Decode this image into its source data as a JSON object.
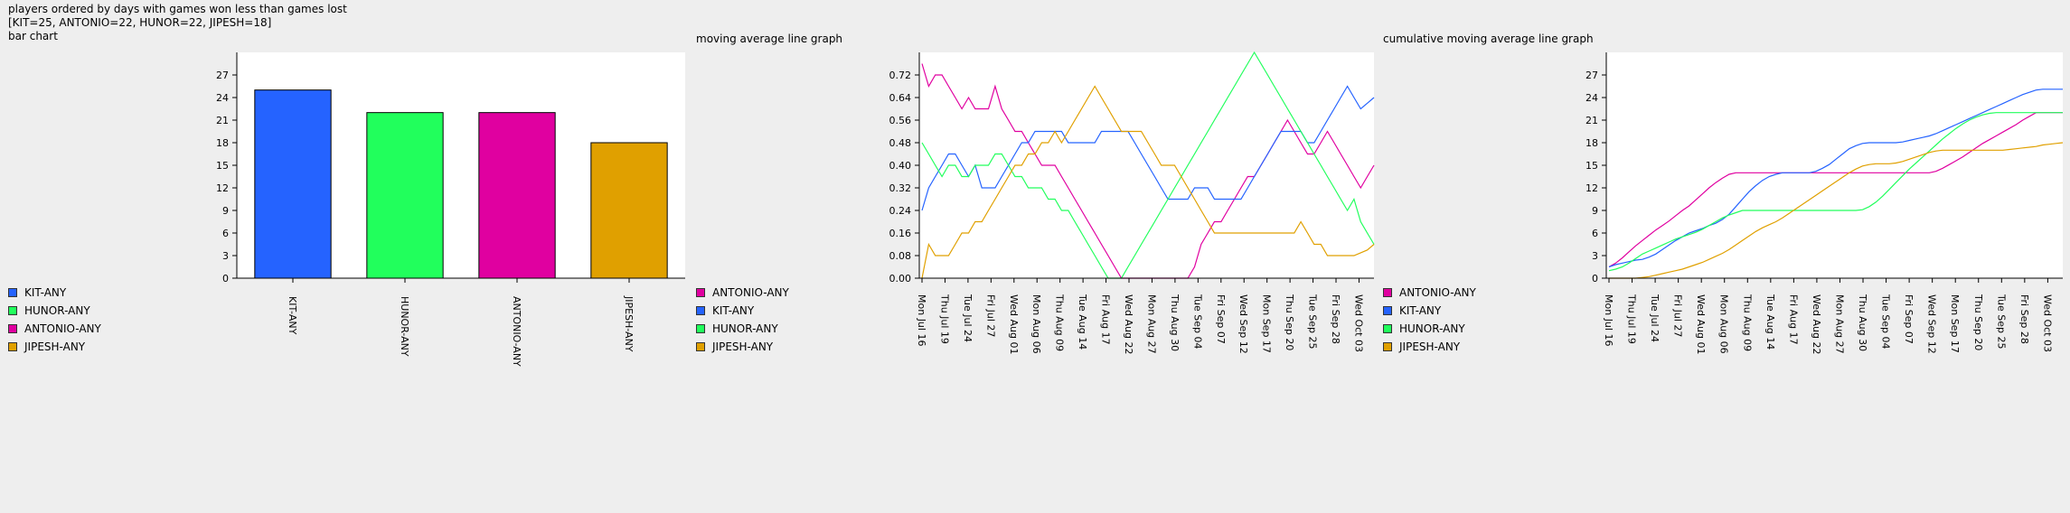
{
  "header": {
    "line1": "players ordered by days with games won less than games lost",
    "line2": "[KIT=25, ANTONIO=22, HUNOR=22, JIPESH=18]",
    "line3": "bar chart"
  },
  "colors": {
    "KIT-ANY": "#2563ff",
    "HUNOR-ANY": "#21ff5c",
    "ANTONIO-ANY": "#e000a0",
    "JIPESH-ANY": "#e0a000",
    "plot_bg": "#ffffff",
    "page_bg": "#eeeeee"
  },
  "chart_data": [
    {
      "type": "bar",
      "title": "",
      "categories": [
        "KIT-ANY",
        "HUNOR-ANY",
        "ANTONIO-ANY",
        "JIPESH-ANY"
      ],
      "values": [
        25,
        22,
        22,
        18
      ],
      "ylim": [
        0,
        30
      ],
      "yticks": [
        0,
        3,
        6,
        9,
        12,
        15,
        18,
        21,
        24,
        27
      ],
      "legend": [
        "KIT-ANY",
        "HUNOR-ANY",
        "ANTONIO-ANY",
        "JIPESH-ANY"
      ],
      "legend_position": "bottom-left",
      "grid": false
    },
    {
      "type": "line",
      "title": "moving average line graph",
      "ylim": [
        0,
        0.8
      ],
      "yticks": [
        "0.00",
        "0.08",
        "0.16",
        "0.24",
        "0.32",
        "0.40",
        "0.48",
        "0.56",
        "0.64",
        "0.72"
      ],
      "xticks": [
        "Mon Jul 16",
        "Thu Jul 19",
        "Tue Jul 24",
        "Fri Jul 27",
        "Wed Aug 01",
        "Mon Aug 06",
        "Thu Aug 09",
        "Tue Aug 14",
        "Fri Aug 17",
        "Wed Aug 22",
        "Mon Aug 27",
        "Thu Aug 30",
        "Tue Sep 04",
        "Fri Sep 07",
        "Wed Sep 12",
        "Mon Sep 17",
        "Thu Sep 20",
        "Tue Sep 25",
        "Fri Sep 28",
        "Wed Oct 03"
      ],
      "legend": [
        "ANTONIO-ANY",
        "KIT-ANY",
        "HUNOR-ANY",
        "JIPESH-ANY"
      ],
      "legend_position": "bottom-left",
      "grid": false,
      "series": [
        {
          "name": "ANTONIO-ANY",
          "values": [
            0.76,
            0.68,
            0.72,
            0.72,
            0.68,
            0.64,
            0.6,
            0.64,
            0.6,
            0.6,
            0.6,
            0.68,
            0.6,
            0.56,
            0.52,
            0.52,
            0.48,
            0.44,
            0.4,
            0.4,
            0.4,
            0.36,
            0.32,
            0.28,
            0.24,
            0.2,
            0.16,
            0.12,
            0.08,
            0.04,
            0.0,
            0.0,
            0.0,
            0.0,
            0.0,
            0.0,
            0.0,
            0.0,
            0.0,
            0.0,
            0.0,
            0.04,
            0.12,
            0.16,
            0.2,
            0.2,
            0.24,
            0.28,
            0.32,
            0.36,
            0.36,
            0.4,
            0.44,
            0.48,
            0.52,
            0.56,
            0.52,
            0.48,
            0.44,
            0.44,
            0.48,
            0.52,
            0.48,
            0.44,
            0.4,
            0.36,
            0.32,
            0.36,
            0.4
          ]
        },
        {
          "name": "KIT-ANY",
          "values": [
            0.24,
            0.32,
            0.36,
            0.4,
            0.44,
            0.44,
            0.4,
            0.36,
            0.4,
            0.32,
            0.32,
            0.32,
            0.36,
            0.4,
            0.44,
            0.48,
            0.48,
            0.52,
            0.52,
            0.52,
            0.52,
            0.52,
            0.48,
            0.48,
            0.48,
            0.48,
            0.48,
            0.52,
            0.52,
            0.52,
            0.52,
            0.52,
            0.48,
            0.44,
            0.4,
            0.36,
            0.32,
            0.28,
            0.28,
            0.28,
            0.28,
            0.32,
            0.32,
            0.32,
            0.28,
            0.28,
            0.28,
            0.28,
            0.28,
            0.32,
            0.36,
            0.4,
            0.44,
            0.48,
            0.52,
            0.52,
            0.52,
            0.52,
            0.48,
            0.48,
            0.52,
            0.56,
            0.6,
            0.64,
            0.68,
            0.64,
            0.6,
            0.62,
            0.64
          ]
        },
        {
          "name": "HUNOR-ANY",
          "values": [
            0.48,
            0.44,
            0.4,
            0.36,
            0.4,
            0.4,
            0.36,
            0.36,
            0.4,
            0.4,
            0.4,
            0.44,
            0.44,
            0.4,
            0.36,
            0.36,
            0.32,
            0.32,
            0.32,
            0.28,
            0.28,
            0.24,
            0.24,
            0.2,
            0.16,
            0.12,
            0.08,
            0.04,
            0.0,
            0.0,
            0.0,
            0.04,
            0.08,
            0.12,
            0.16,
            0.2,
            0.24,
            0.28,
            0.32,
            0.36,
            0.4,
            0.44,
            0.48,
            0.52,
            0.56,
            0.6,
            0.64,
            0.68,
            0.72,
            0.76,
            0.8,
            0.76,
            0.72,
            0.68,
            0.64,
            0.6,
            0.56,
            0.52,
            0.48,
            0.44,
            0.4,
            0.36,
            0.32,
            0.28,
            0.24,
            0.28,
            0.2,
            0.16,
            0.12
          ]
        },
        {
          "name": "JIPESH-ANY",
          "values": [
            0.0,
            0.12,
            0.08,
            0.08,
            0.08,
            0.12,
            0.16,
            0.16,
            0.2,
            0.2,
            0.24,
            0.28,
            0.32,
            0.36,
            0.4,
            0.4,
            0.44,
            0.44,
            0.48,
            0.48,
            0.52,
            0.48,
            0.52,
            0.56,
            0.6,
            0.64,
            0.68,
            0.64,
            0.6,
            0.56,
            0.52,
            0.52,
            0.52,
            0.52,
            0.48,
            0.44,
            0.4,
            0.4,
            0.4,
            0.36,
            0.32,
            0.28,
            0.24,
            0.2,
            0.16,
            0.16,
            0.16,
            0.16,
            0.16,
            0.16,
            0.16,
            0.16,
            0.16,
            0.16,
            0.16,
            0.16,
            0.16,
            0.2,
            0.16,
            0.12,
            0.12,
            0.08,
            0.08,
            0.08,
            0.08,
            0.08,
            0.09,
            0.1,
            0.12
          ]
        }
      ]
    },
    {
      "type": "line",
      "title": "cumulative moving average line graph",
      "ylim": [
        0,
        30
      ],
      "yticks": [
        0,
        3,
        6,
        9,
        12,
        15,
        18,
        21,
        24,
        27
      ],
      "xticks": [
        "Mon Jul 16",
        "Thu Jul 19",
        "Tue Jul 24",
        "Fri Jul 27",
        "Wed Aug 01",
        "Mon Aug 06",
        "Thu Aug 09",
        "Tue Aug 14",
        "Fri Aug 17",
        "Wed Aug 22",
        "Mon Aug 27",
        "Thu Aug 30",
        "Tue Sep 04",
        "Fri Sep 07",
        "Wed Sep 12",
        "Mon Sep 17",
        "Thu Sep 20",
        "Tue Sep 25",
        "Fri Sep 28",
        "Wed Oct 03"
      ],
      "legend": [
        "ANTONIO-ANY",
        "KIT-ANY",
        "HUNOR-ANY",
        "JIPESH-ANY"
      ],
      "legend_position": "bottom-left",
      "grid": false,
      "series": [
        {
          "name": "ANTONIO-ANY",
          "values": [
            1.5,
            2.0,
            2.7,
            3.5,
            4.3,
            5.0,
            5.7,
            6.4,
            7.0,
            7.6,
            8.3,
            9.0,
            9.6,
            10.4,
            11.2,
            12.0,
            12.7,
            13.3,
            13.8,
            14.0,
            14.0,
            14.0,
            14.0,
            14.0,
            14.0,
            14.0,
            14.0,
            14.0,
            14.0,
            14.0,
            14.0,
            14.0,
            14.0,
            14.0,
            14.0,
            14.0,
            14.0,
            14.0,
            14.0,
            14.0,
            14.0,
            14.0,
            14.0,
            14.0,
            14.0,
            14.0,
            14.0,
            14.0,
            14.0,
            14.2,
            14.6,
            15.1,
            15.6,
            16.1,
            16.7,
            17.3,
            17.9,
            18.4,
            18.9,
            19.4,
            19.9,
            20.4,
            21.0,
            21.5,
            22.0,
            22.0,
            22.0,
            22.0,
            22.0
          ]
        },
        {
          "name": "KIT-ANY",
          "values": [
            1.5,
            1.8,
            2.0,
            2.2,
            2.4,
            2.5,
            2.8,
            3.2,
            3.8,
            4.4,
            5.0,
            5.5,
            6.0,
            6.3,
            6.6,
            7.0,
            7.3,
            7.8,
            8.5,
            9.5,
            10.5,
            11.5,
            12.3,
            13.0,
            13.5,
            13.8,
            14.0,
            14.0,
            14.0,
            14.0,
            14.0,
            14.2,
            14.6,
            15.1,
            15.8,
            16.5,
            17.2,
            17.6,
            17.9,
            18.0,
            18.0,
            18.0,
            18.0,
            18.0,
            18.1,
            18.3,
            18.5,
            18.7,
            18.9,
            19.2,
            19.6,
            20.0,
            20.4,
            20.8,
            21.2,
            21.6,
            22.0,
            22.4,
            22.8,
            23.2,
            23.6,
            24.0,
            24.4,
            24.7,
            25.0,
            25.1,
            25.1,
            25.1,
            25.1
          ]
        },
        {
          "name": "HUNOR-ANY",
          "values": [
            1.0,
            1.2,
            1.5,
            2.0,
            2.6,
            3.2,
            3.6,
            4.0,
            4.4,
            4.8,
            5.2,
            5.5,
            5.8,
            6.1,
            6.5,
            7.0,
            7.5,
            8.0,
            8.4,
            8.7,
            9.0,
            9.0,
            9.0,
            9.0,
            9.0,
            9.0,
            9.0,
            9.0,
            9.0,
            9.0,
            9.0,
            9.0,
            9.0,
            9.0,
            9.0,
            9.0,
            9.0,
            9.0,
            9.1,
            9.5,
            10.1,
            10.9,
            11.8,
            12.7,
            13.6,
            14.5,
            15.3,
            16.1,
            16.9,
            17.7,
            18.5,
            19.2,
            19.9,
            20.5,
            21.0,
            21.4,
            21.7,
            21.9,
            22.0,
            22.0,
            22.0,
            22.0,
            22.0,
            22.0,
            22.0,
            22.0,
            22.0,
            22.0,
            22.0
          ]
        },
        {
          "name": "JIPESH-ANY",
          "values": [
            0.0,
            0.0,
            0.0,
            0.0,
            0.0,
            0.1,
            0.2,
            0.4,
            0.6,
            0.8,
            1.0,
            1.2,
            1.5,
            1.8,
            2.1,
            2.5,
            2.9,
            3.3,
            3.8,
            4.4,
            5.0,
            5.6,
            6.2,
            6.7,
            7.1,
            7.5,
            8.0,
            8.6,
            9.2,
            9.8,
            10.4,
            11.0,
            11.6,
            12.2,
            12.8,
            13.4,
            14.0,
            14.5,
            14.9,
            15.1,
            15.2,
            15.2,
            15.2,
            15.3,
            15.5,
            15.8,
            16.1,
            16.4,
            16.7,
            16.9,
            17.0,
            17.0,
            17.0,
            17.0,
            17.0,
            17.0,
            17.0,
            17.0,
            17.0,
            17.0,
            17.1,
            17.2,
            17.3,
            17.4,
            17.5,
            17.7,
            17.8,
            17.9,
            18.0
          ]
        }
      ]
    }
  ]
}
